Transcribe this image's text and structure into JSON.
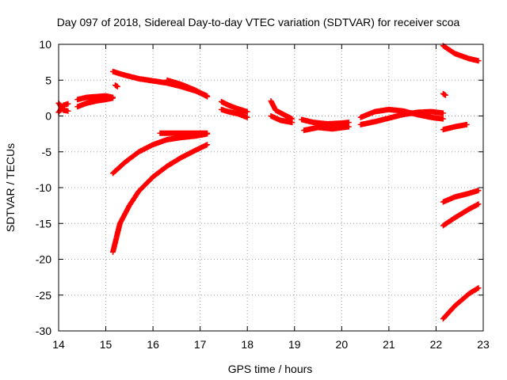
{
  "chart_data": {
    "type": "scatter",
    "title": "Day 097 of 2018, Sidereal Day-to-day VTEC variation (SDTVAR) for receiver scoa",
    "xlabel": "GPS time / hours",
    "ylabel": "SDTVAR / TECUs",
    "xlim": [
      14,
      23
    ],
    "ylim": [
      -30,
      10
    ],
    "xticks": [
      "14",
      "15",
      "16",
      "17",
      "18",
      "19",
      "20",
      "21",
      "22",
      "23"
    ],
    "yticks": [
      "10",
      "5",
      "0",
      "-5",
      "-10",
      "-15",
      "-20",
      "-25",
      "-30"
    ],
    "grid": true,
    "marker": "+",
    "color": "#ff0000",
    "series": [
      {
        "name": "s1",
        "x": [
          14.0,
          14.1,
          14.2
        ],
        "y": [
          0.5,
          1.5,
          1.7
        ]
      },
      {
        "name": "s1b",
        "x": [
          14.0,
          14.1,
          14.2
        ],
        "y": [
          1.8,
          0.8,
          0.7
        ]
      },
      {
        "name": "s2",
        "x": [
          14.4,
          14.6,
          14.8,
          15.0,
          15.15
        ],
        "y": [
          1.3,
          1.8,
          2.1,
          2.3,
          2.5
        ]
      },
      {
        "name": "s2b",
        "x": [
          14.4,
          14.6,
          14.8,
          15.0,
          15.15
        ],
        "y": [
          2.3,
          2.6,
          2.7,
          2.8,
          2.6
        ]
      },
      {
        "name": "s3",
        "x": [
          15.2,
          15.25
        ],
        "y": [
          4.3,
          4.1
        ]
      },
      {
        "name": "s4",
        "x": [
          15.15,
          15.4,
          15.7,
          16.0,
          16.3,
          16.6,
          16.9,
          17.15
        ],
        "y": [
          6.2,
          5.7,
          5.2,
          4.9,
          4.6,
          4.1,
          3.5,
          2.8
        ]
      },
      {
        "name": "s5",
        "x": [
          16.3,
          16.6,
          16.9,
          17.15
        ],
        "y": [
          5.0,
          4.4,
          3.6,
          2.7
        ]
      },
      {
        "name": "s6",
        "x": [
          15.15,
          15.4,
          15.7,
          16.0,
          16.3,
          16.6,
          16.9,
          17.15
        ],
        "y": [
          -8.0,
          -6.5,
          -5.0,
          -4.0,
          -3.3,
          -3.0,
          -2.8,
          -2.5
        ]
      },
      {
        "name": "s7",
        "x": [
          16.15,
          16.4,
          16.7,
          17.0,
          17.15
        ],
        "y": [
          -2.4,
          -2.4,
          -2.4,
          -2.4,
          -2.4
        ]
      },
      {
        "name": "s8",
        "x": [
          15.15,
          15.3,
          15.5,
          15.7,
          16.0,
          16.3,
          16.6,
          16.9,
          17.15
        ],
        "y": [
          -19.0,
          -15.0,
          -12.5,
          -10.5,
          -8.5,
          -7.0,
          -5.8,
          -4.8,
          -4.0
        ]
      },
      {
        "name": "s9",
        "x": [
          17.45,
          17.6,
          17.8,
          18.0
        ],
        "y": [
          2.0,
          1.5,
          1.0,
          0.6
        ]
      },
      {
        "name": "s9b",
        "x": [
          17.45,
          17.6,
          17.8,
          18.0
        ],
        "y": [
          0.9,
          0.6,
          0.3,
          -0.2
        ]
      },
      {
        "name": "s10",
        "x": [
          18.5,
          18.6,
          18.8,
          18.95
        ],
        "y": [
          2.1,
          0.8,
          0.1,
          -0.4
        ]
      },
      {
        "name": "s10b",
        "x": [
          18.5,
          18.7,
          18.95
        ],
        "y": [
          0.0,
          -0.6,
          -0.9
        ]
      },
      {
        "name": "s11",
        "x": [
          19.15,
          19.4,
          19.7,
          20.0,
          20.15
        ],
        "y": [
          -0.5,
          -0.9,
          -1.1,
          -1.0,
          -0.9
        ]
      },
      {
        "name": "s12",
        "x": [
          19.2,
          19.5,
          19.8,
          20.15
        ],
        "y": [
          -2.0,
          -1.6,
          -1.8,
          -1.5
        ]
      },
      {
        "name": "s13",
        "x": [
          20.4,
          20.7,
          21.0,
          21.3,
          21.6,
          21.9,
          22.15
        ],
        "y": [
          -1.2,
          -0.8,
          -0.3,
          0.2,
          0.5,
          0.6,
          0.4
        ]
      },
      {
        "name": "s14",
        "x": [
          20.4,
          20.7,
          21.0,
          21.3,
          21.6,
          21.9,
          22.15
        ],
        "y": [
          -0.2,
          0.6,
          0.9,
          0.7,
          0.2,
          -0.2,
          -0.4
        ]
      },
      {
        "name": "s15",
        "x": [
          22.15,
          22.4,
          22.7,
          22.9
        ],
        "y": [
          9.8,
          8.7,
          8.0,
          7.7
        ]
      },
      {
        "name": "s16",
        "x": [
          22.15,
          22.2
        ],
        "y": [
          3.1,
          2.9
        ]
      },
      {
        "name": "s17",
        "x": [
          22.15,
          22.4,
          22.65
        ],
        "y": [
          -1.9,
          -1.5,
          -1.2
        ]
      },
      {
        "name": "s18",
        "x": [
          22.15,
          22.4,
          22.7,
          22.9
        ],
        "y": [
          -12.0,
          -11.3,
          -10.8,
          -10.4
        ]
      },
      {
        "name": "s19",
        "x": [
          22.15,
          22.4,
          22.7,
          22.9
        ],
        "y": [
          -15.3,
          -14.2,
          -13.0,
          -12.3
        ]
      },
      {
        "name": "s20",
        "x": [
          22.15,
          22.4,
          22.7,
          22.9
        ],
        "y": [
          -28.3,
          -26.5,
          -24.8,
          -24.0
        ]
      }
    ]
  }
}
